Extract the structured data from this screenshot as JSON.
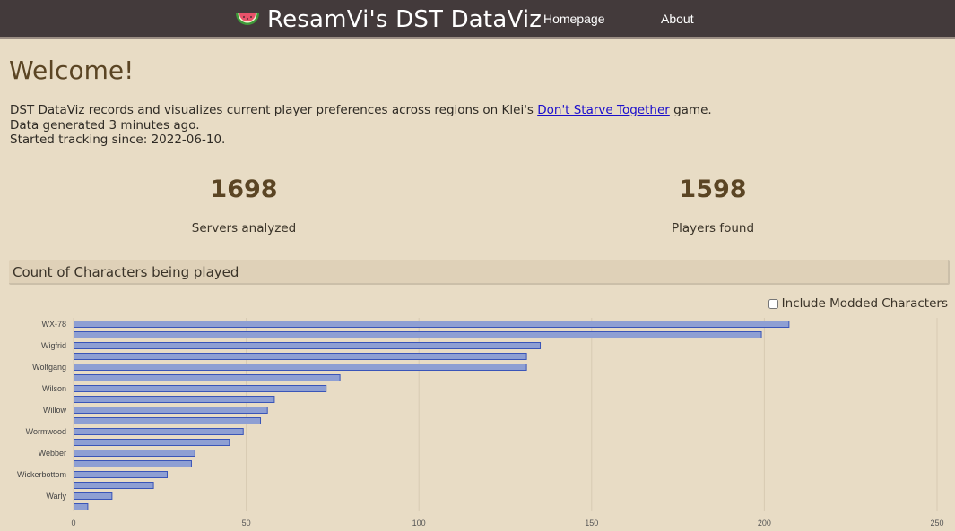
{
  "header": {
    "logo_icon": "watermelon-icon",
    "title": "ResamVi's DST DataViz",
    "nav": [
      {
        "label": "Homepage"
      },
      {
        "label": "About"
      }
    ]
  },
  "welcome": {
    "heading": "Welcome!",
    "line1_before": "DST DataViz records and visualizes current player preferences across regions on Klei's ",
    "line1_link": "Don't Starve Together",
    "line1_after": " game.",
    "line2": "Data generated 3 minutes ago.",
    "line3": "Started tracking since: 2022-06-10."
  },
  "stats": {
    "servers": {
      "value": "1698",
      "label": "Servers analyzed"
    },
    "players": {
      "value": "1598",
      "label": "Players found"
    }
  },
  "section": {
    "title": "Count of Characters being played",
    "checkbox_label": "Include Modded Characters",
    "checkbox_checked": false
  },
  "chart_data": {
    "type": "bar",
    "orientation": "horizontal",
    "categories": [
      "WX-78",
      "",
      "Wigfrid",
      "",
      "Wolfgang",
      "",
      "Wilson",
      "",
      "Willow",
      "",
      "Wormwood",
      "",
      "Webber",
      "",
      "Wickerbottom",
      "",
      "Warly",
      ""
    ],
    "values": [
      207,
      199,
      135,
      131,
      131,
      77,
      73,
      58,
      56,
      54,
      49,
      45,
      35,
      34,
      27,
      23,
      11,
      4
    ],
    "xlim": [
      0,
      250
    ],
    "xticks": [
      "0",
      "50",
      "100",
      "150",
      "200",
      "250"
    ],
    "grid": true,
    "colors": {
      "bar_fill": "#8e9fd3",
      "bar_stroke": "#3a55b8",
      "grid": "#d7cab2"
    }
  }
}
